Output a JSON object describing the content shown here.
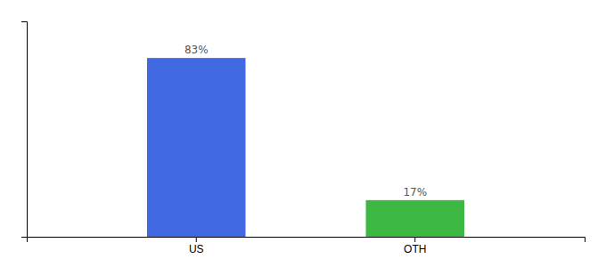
{
  "chart_data": {
    "type": "bar",
    "categories": [
      "US",
      "OTH"
    ],
    "values": [
      83,
      17
    ],
    "colors": [
      "#4169e1",
      "#3cb843"
    ],
    "value_labels": [
      "83%",
      "17%"
    ],
    "data_labels": true,
    "ylim": [
      0,
      100
    ],
    "yticks": [],
    "grid": false,
    "tick_labels": "x"
  }
}
